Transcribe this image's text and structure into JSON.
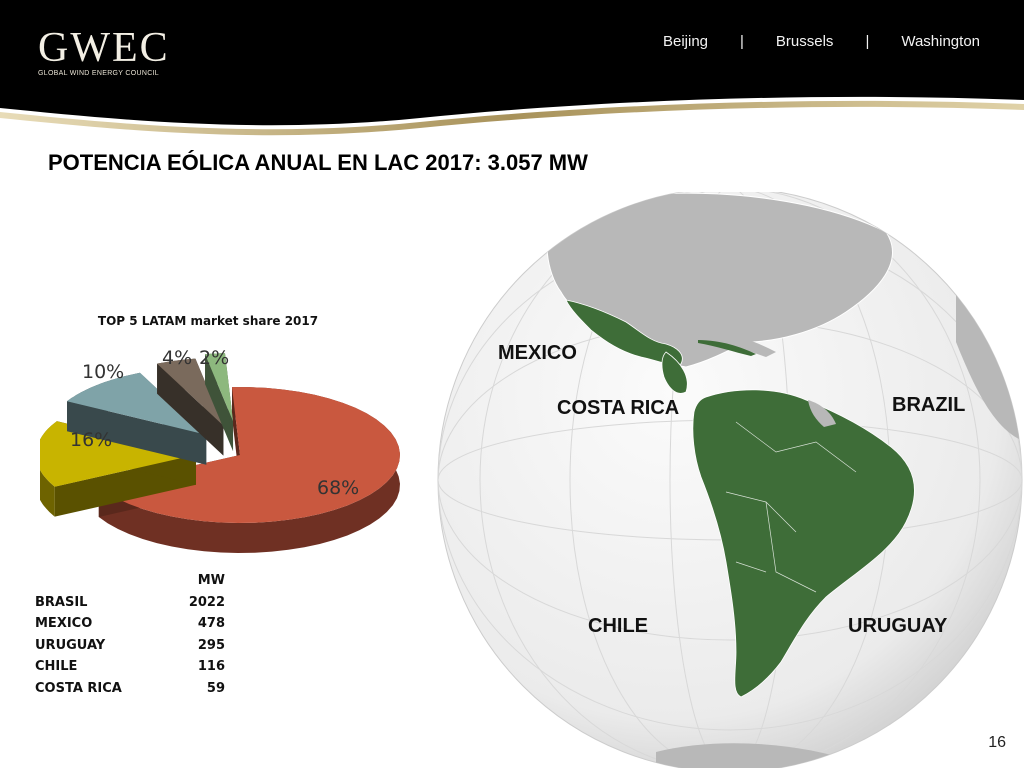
{
  "header": {
    "logo": "GWEC",
    "logo_sub": "GLOBAL WIND ENERGY COUNCIL",
    "cities": [
      "Beijing",
      "Brussels",
      "Washington"
    ],
    "separator": "|"
  },
  "title": "POTENCIA EÓLICA ANUAL  EN LAC  2017:  3.057 MW",
  "map_labels": {
    "mexico": "MEXICO",
    "costa_rica": "COSTA RICA",
    "brazil": "BRAZIL",
    "chile": "CHILE",
    "uruguay": "URUGUAY"
  },
  "colors": {
    "highlight_country": "#3e6d38",
    "land": "#b8b8b8",
    "ocean": "#f0f0f0",
    "header_bg": "#000000",
    "header_line": "#b39a5c"
  },
  "chart_data": {
    "type": "pie",
    "title": "TOP 5 LATAM market share 2017",
    "categories": [
      "BRASIL",
      "MEXICO",
      "URUGUAY",
      "CHILE",
      "COSTA RICA"
    ],
    "values": [
      68,
      16,
      10,
      4,
      2
    ],
    "labels": [
      "68%",
      "16%",
      "10%",
      "4%",
      "2%"
    ],
    "colors": [
      "#c9583f",
      "#c8b400",
      "#7fa3a8",
      "#7a6a5c",
      "#8db87e"
    ]
  },
  "table": {
    "header": "MW",
    "rows": [
      {
        "name": "BRASIL",
        "value": "2022"
      },
      {
        "name": "MEXICO",
        "value": "478"
      },
      {
        "name": "URUGUAY",
        "value": "295"
      },
      {
        "name": "CHILE",
        "value": "116"
      },
      {
        "name": "COSTA RICA",
        "value": "59"
      }
    ]
  },
  "page_number": "16"
}
